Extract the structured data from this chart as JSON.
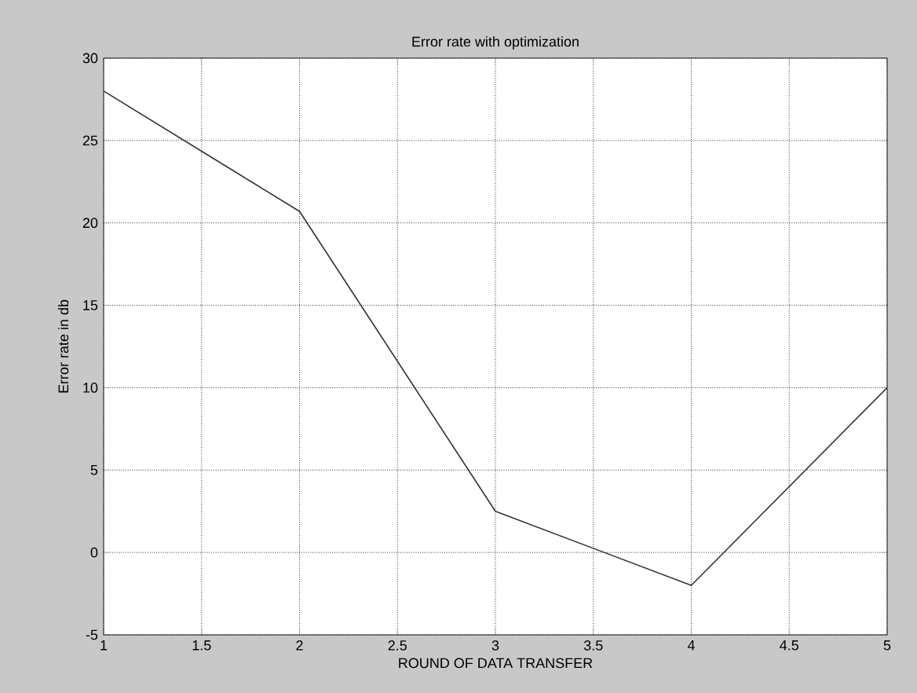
{
  "chart_data": {
    "type": "line",
    "title": "Error rate with optimization",
    "xlabel": "ROUND OF DATA TRANSFER",
    "ylabel": "Error rate in db",
    "x": [
      1,
      2,
      3,
      4,
      5
    ],
    "series": [
      {
        "color": "#333333",
        "values": [
          28,
          20.7,
          2.5,
          -2,
          10
        ]
      }
    ],
    "xlim": [
      1,
      5
    ],
    "ylim": [
      -5,
      30
    ],
    "xticks": [
      1,
      1.5,
      2,
      2.5,
      3,
      3.5,
      4,
      4.5,
      5
    ],
    "yticks": [
      -5,
      0,
      5,
      10,
      15,
      20,
      25,
      30
    ],
    "grid": true,
    "marker": "none",
    "line_style": "solid"
  }
}
